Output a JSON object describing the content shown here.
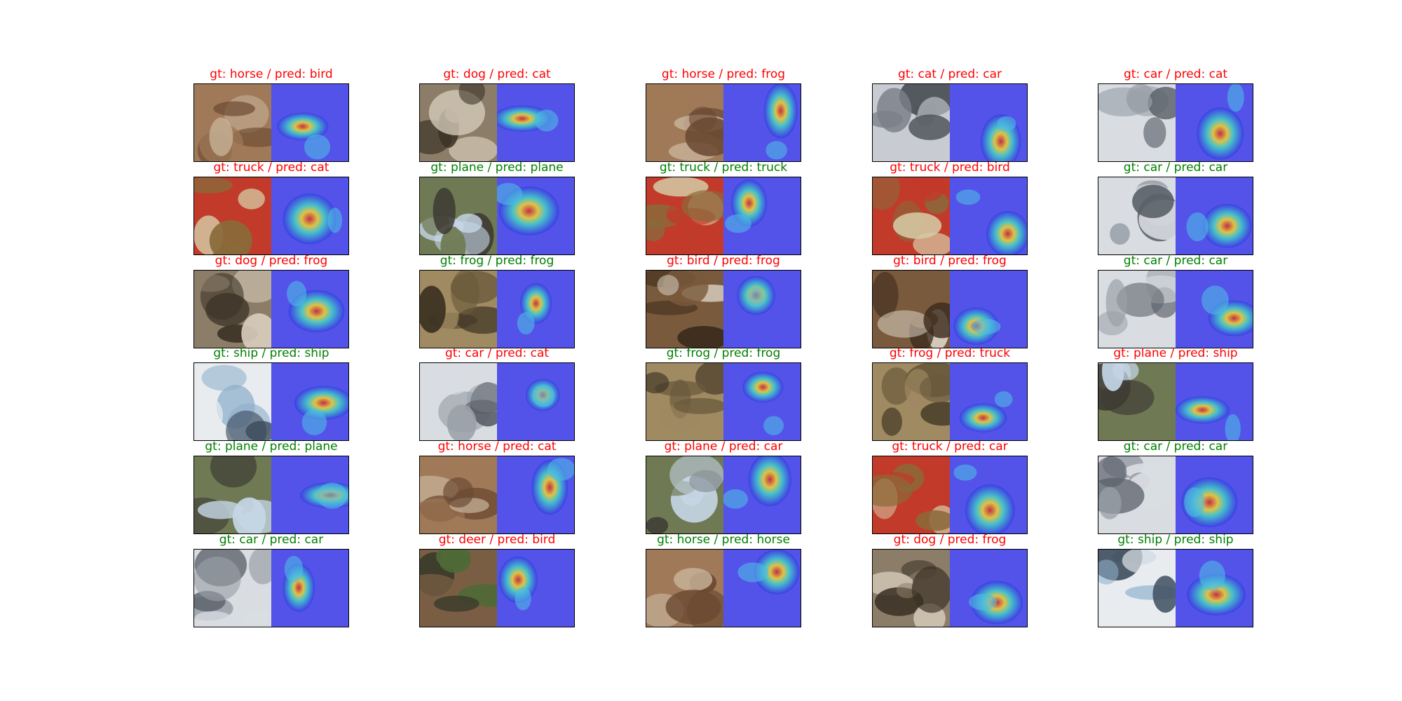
{
  "figure": {
    "colors": {
      "correct": "#008000",
      "incorrect": "#ff0000"
    },
    "panels": [
      {
        "gt": "horse",
        "pred": "bird",
        "title": "gt: horse / pred: bird"
      },
      {
        "gt": "dog",
        "pred": "cat",
        "title": "gt: dog / pred: cat"
      },
      {
        "gt": "horse",
        "pred": "frog",
        "title": "gt: horse / pred: frog"
      },
      {
        "gt": "cat",
        "pred": "car",
        "title": "gt: cat / pred: car"
      },
      {
        "gt": "car",
        "pred": "cat",
        "title": "gt: car / pred: cat"
      },
      {
        "gt": "truck",
        "pred": "cat",
        "title": "gt: truck / pred: cat"
      },
      {
        "gt": "plane",
        "pred": "plane",
        "title": "gt: plane / pred: plane"
      },
      {
        "gt": "truck",
        "pred": "truck",
        "title": "gt: truck / pred: truck"
      },
      {
        "gt": "truck",
        "pred": "bird",
        "title": "gt: truck / pred: bird"
      },
      {
        "gt": "car",
        "pred": "car",
        "title": "gt: car / pred: car"
      },
      {
        "gt": "dog",
        "pred": "frog",
        "title": "gt: dog / pred: frog"
      },
      {
        "gt": "frog",
        "pred": "frog",
        "title": "gt: frog / pred: frog"
      },
      {
        "gt": "bird",
        "pred": "frog",
        "title": "gt: bird / pred: frog"
      },
      {
        "gt": "bird",
        "pred": "frog",
        "title": "gt: bird / pred: frog"
      },
      {
        "gt": "car",
        "pred": "car",
        "title": "gt: car / pred: car"
      },
      {
        "gt": "ship",
        "pred": "ship",
        "title": "gt: ship / pred: ship"
      },
      {
        "gt": "car",
        "pred": "cat",
        "title": "gt: car / pred: cat"
      },
      {
        "gt": "frog",
        "pred": "frog",
        "title": "gt: frog / pred: frog"
      },
      {
        "gt": "frog",
        "pred": "truck",
        "title": "gt: frog / pred: truck"
      },
      {
        "gt": "plane",
        "pred": "ship",
        "title": "gt: plane / pred: ship"
      },
      {
        "gt": "plane",
        "pred": "plane",
        "title": "gt: plane / pred: plane"
      },
      {
        "gt": "horse",
        "pred": "cat",
        "title": "gt: horse / pred: cat"
      },
      {
        "gt": "plane",
        "pred": "car",
        "title": "gt: plane / pred: car"
      },
      {
        "gt": "truck",
        "pred": "car",
        "title": "gt: truck / pred: car"
      },
      {
        "gt": "car",
        "pred": "car",
        "title": "gt: car / pred: car"
      },
      {
        "gt": "car",
        "pred": "car",
        "title": "gt: car / pred: car"
      },
      {
        "gt": "deer",
        "pred": "bird",
        "title": "gt: deer / pred: bird"
      },
      {
        "gt": "horse",
        "pred": "horse",
        "title": "gt: horse / pred: horse"
      },
      {
        "gt": "dog",
        "pred": "frog",
        "title": "gt: dog / pred: frog"
      },
      {
        "gt": "ship",
        "pred": "ship",
        "title": "gt: ship / pred: ship"
      }
    ]
  }
}
